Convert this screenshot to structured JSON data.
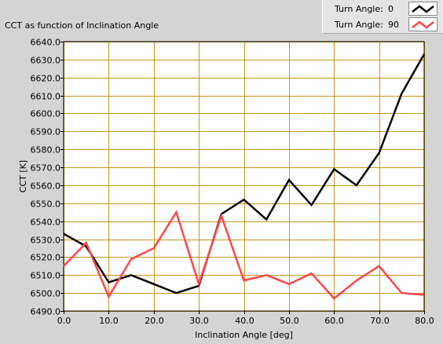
{
  "title": "CCT as function of Inclination Angle",
  "legend": {
    "label": "Turn Angle:",
    "rows": [
      {
        "value": "0",
        "color": "#000000"
      },
      {
        "value": "90",
        "color": "#ff4848"
      }
    ]
  },
  "chart_data": {
    "type": "line",
    "xlabel": "Inclination Angle [deg]",
    "ylabel": "CCT [K]",
    "xlim": [
      0,
      80
    ],
    "ylim": [
      6490,
      6640
    ],
    "x_ticks": [
      "0.0",
      "10.0",
      "20.0",
      "30.0",
      "40.0",
      "50.0",
      "60.0",
      "70.0",
      "80.0"
    ],
    "y_ticks": [
      "6490.0",
      "6500.0",
      "6510.0",
      "6520.0",
      "6530.0",
      "6540.0",
      "6550.0",
      "6560.0",
      "6570.0",
      "6580.0",
      "6590.0",
      "6600.0",
      "6610.0",
      "6620.0",
      "6630.0",
      "6640.0"
    ],
    "x": [
      0,
      5,
      10,
      15,
      20,
      25,
      30,
      35,
      40,
      45,
      50,
      55,
      60,
      65,
      70,
      75,
      80
    ],
    "grid": true,
    "series": [
      {
        "name": "0",
        "color": "#000000",
        "values": [
          6533,
          6526,
          6506,
          6510,
          6505,
          6500,
          6504,
          6544,
          6552,
          6541,
          6563,
          6549,
          6569,
          6560,
          6578,
          6611,
          6633
        ]
      },
      {
        "name": "90",
        "color": "#ff4848",
        "values": [
          6515,
          6528,
          6498,
          6519,
          6525,
          6545,
          6505,
          6543,
          6507,
          6510,
          6505,
          6511,
          6497,
          6507,
          6515,
          6500,
          6499
        ]
      }
    ]
  }
}
